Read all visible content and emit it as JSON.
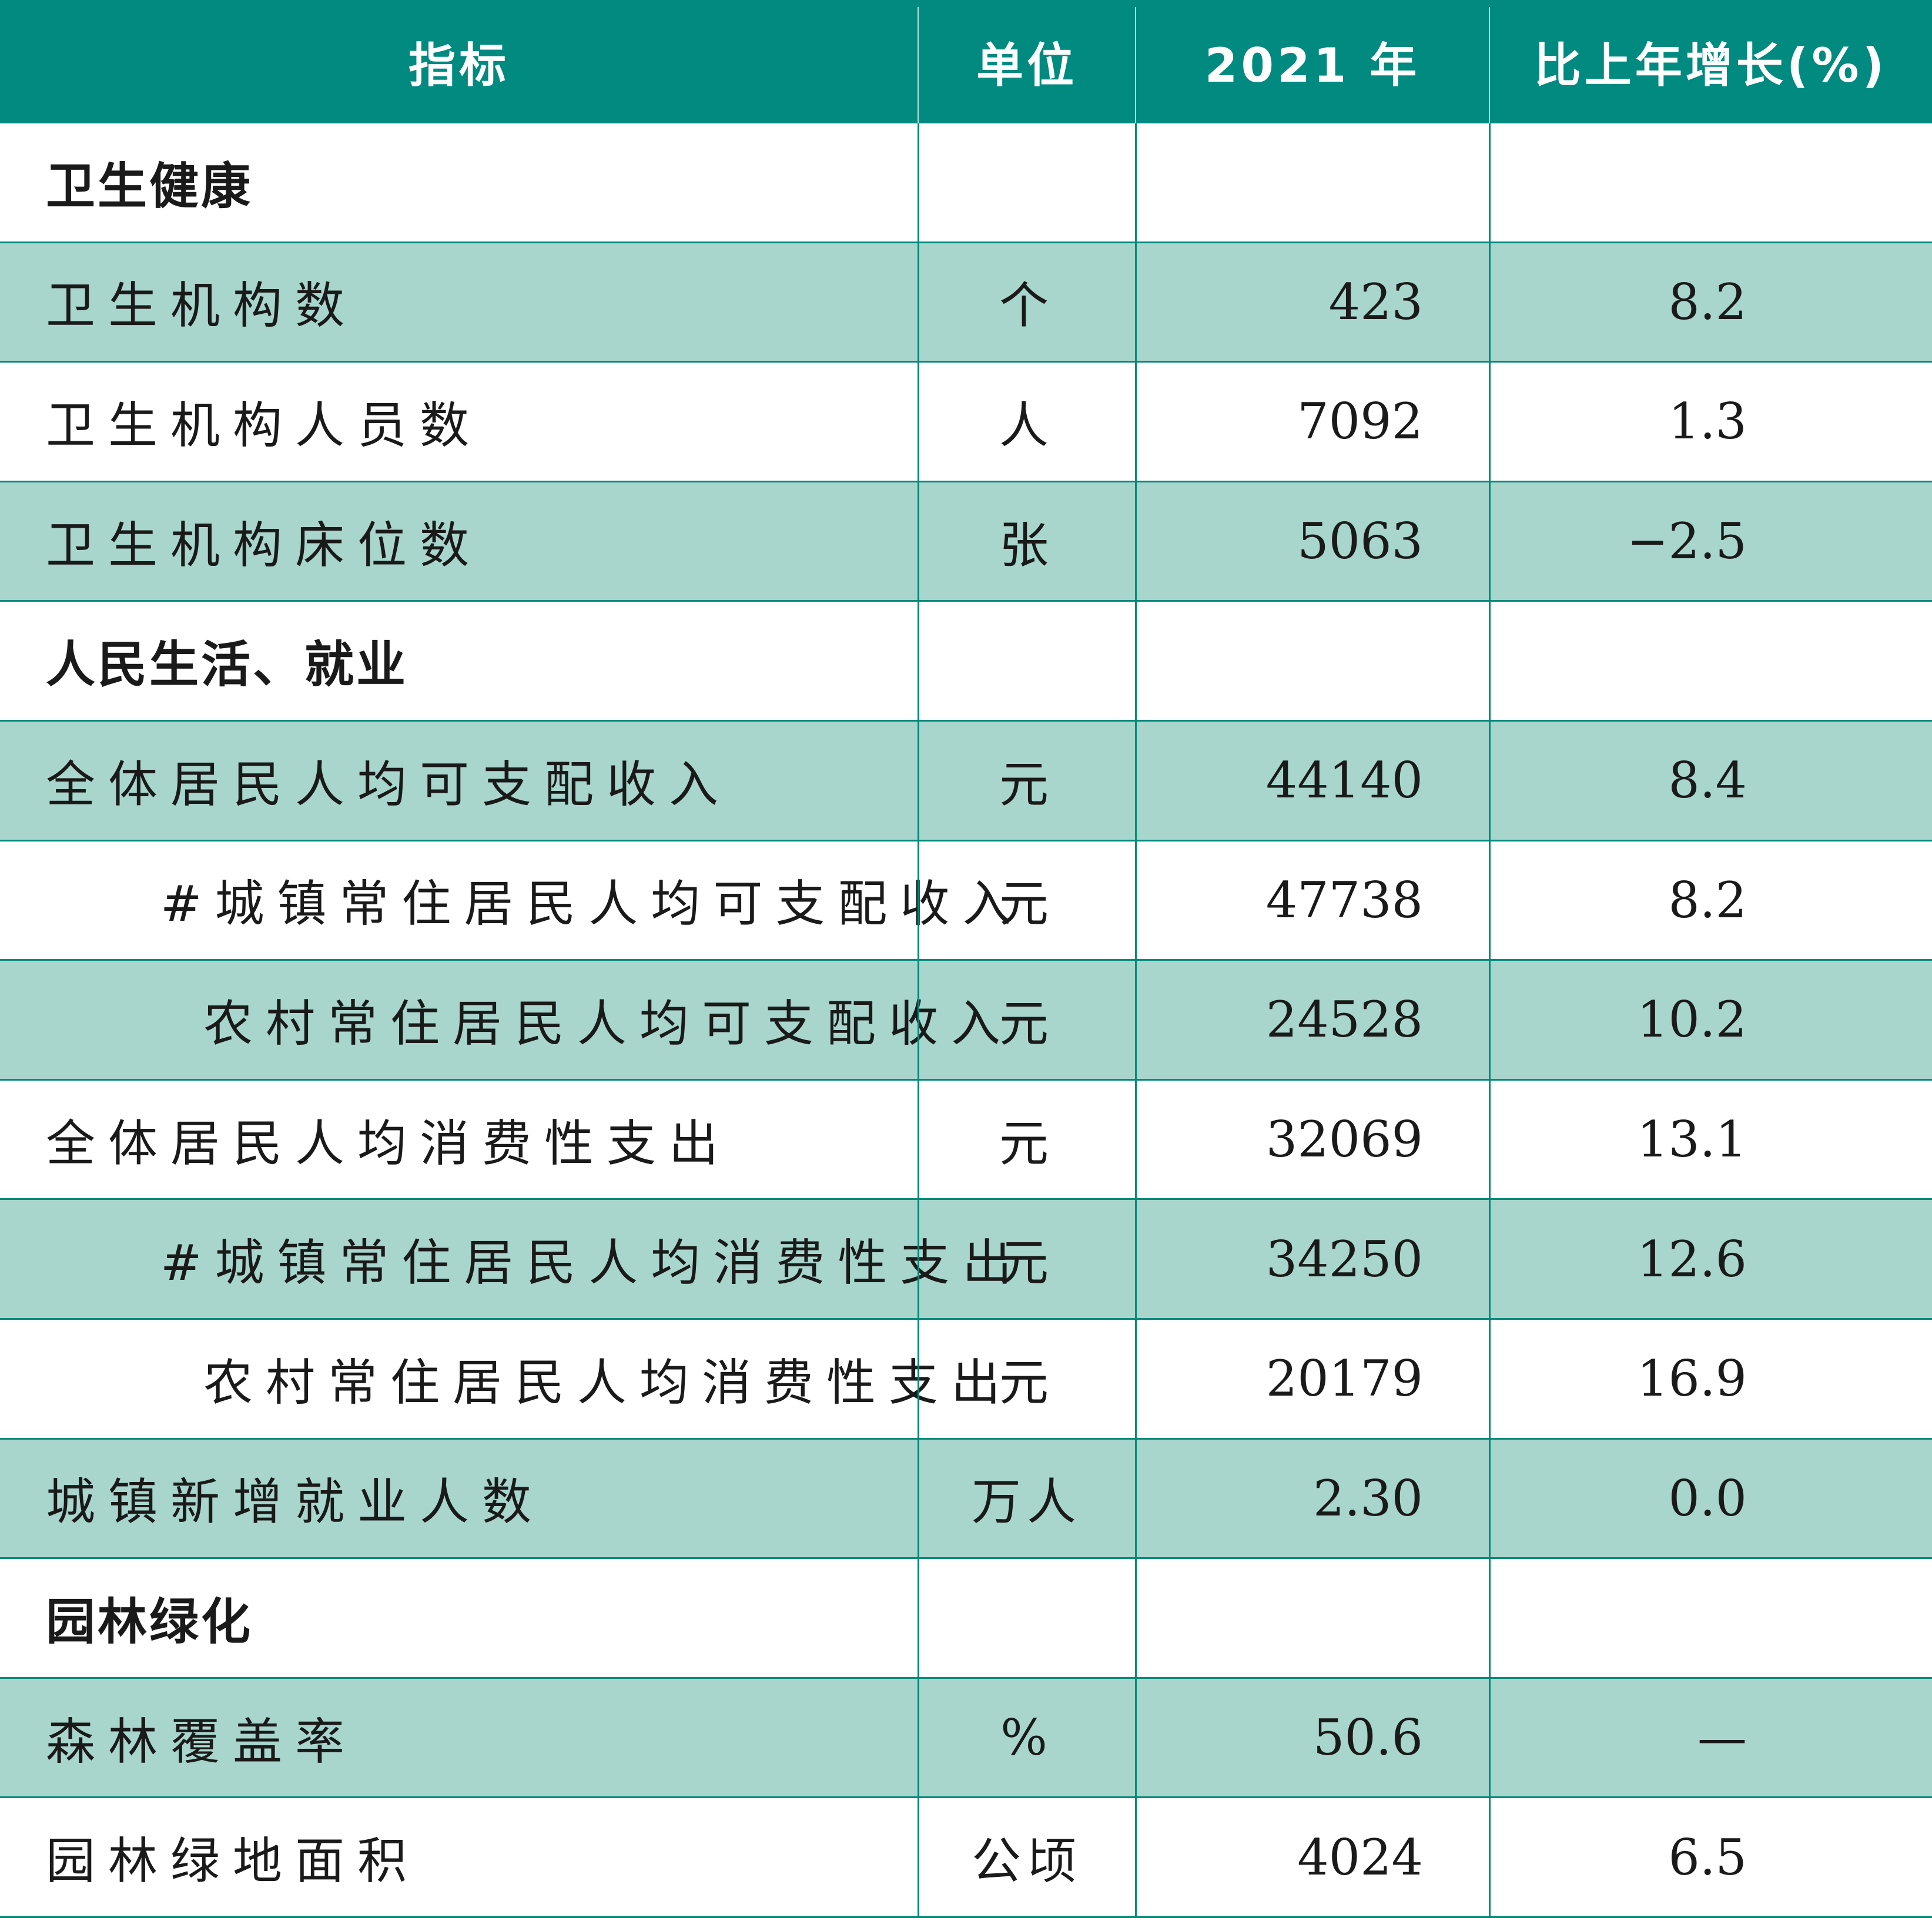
{
  "header": [
    "指标",
    "单位",
    "2021 年",
    "比上年增长(%)"
  ],
  "sections": [
    {
      "title": "卫生健康",
      "rows": [
        [
          "卫生机构数",
          "个",
          "423",
          "8.2"
        ],
        [
          "卫生机构人员数",
          "人",
          "7092",
          "1.3"
        ],
        [
          "卫生机构床位数",
          "张",
          "5063",
          "−2.5"
        ]
      ]
    },
    {
      "title": "人民生活、就业",
      "rows": [
        [
          "全体居民人均可支配收入",
          "元",
          "44140",
          "8.4"
        ],
        [
          "#城镇常住居民人均可支配收入",
          "元",
          "47738",
          "8.2"
        ],
        [
          "农村常住居民人均可支配收入",
          "元",
          "24528",
          "10.2"
        ],
        [
          "全体居民人均消费性支出",
          "元",
          "32069",
          "13.1"
        ],
        [
          "#城镇常住居民人均消费性支出",
          "元",
          "34250",
          "12.6"
        ],
        [
          "农村常住居民人均消费性支出",
          "元",
          "20179",
          "16.9"
        ],
        [
          "城镇新增就业人数",
          "万人",
          "2.30",
          "0.0"
        ]
      ]
    },
    {
      "title": "园林绿化",
      "rows": [
        [
          "森林覆盖率",
          "%",
          "50.6",
          "—"
        ],
        [
          "园林绿地面积",
          "公顷",
          "4024",
          "6.5"
        ]
      ]
    }
  ]
}
